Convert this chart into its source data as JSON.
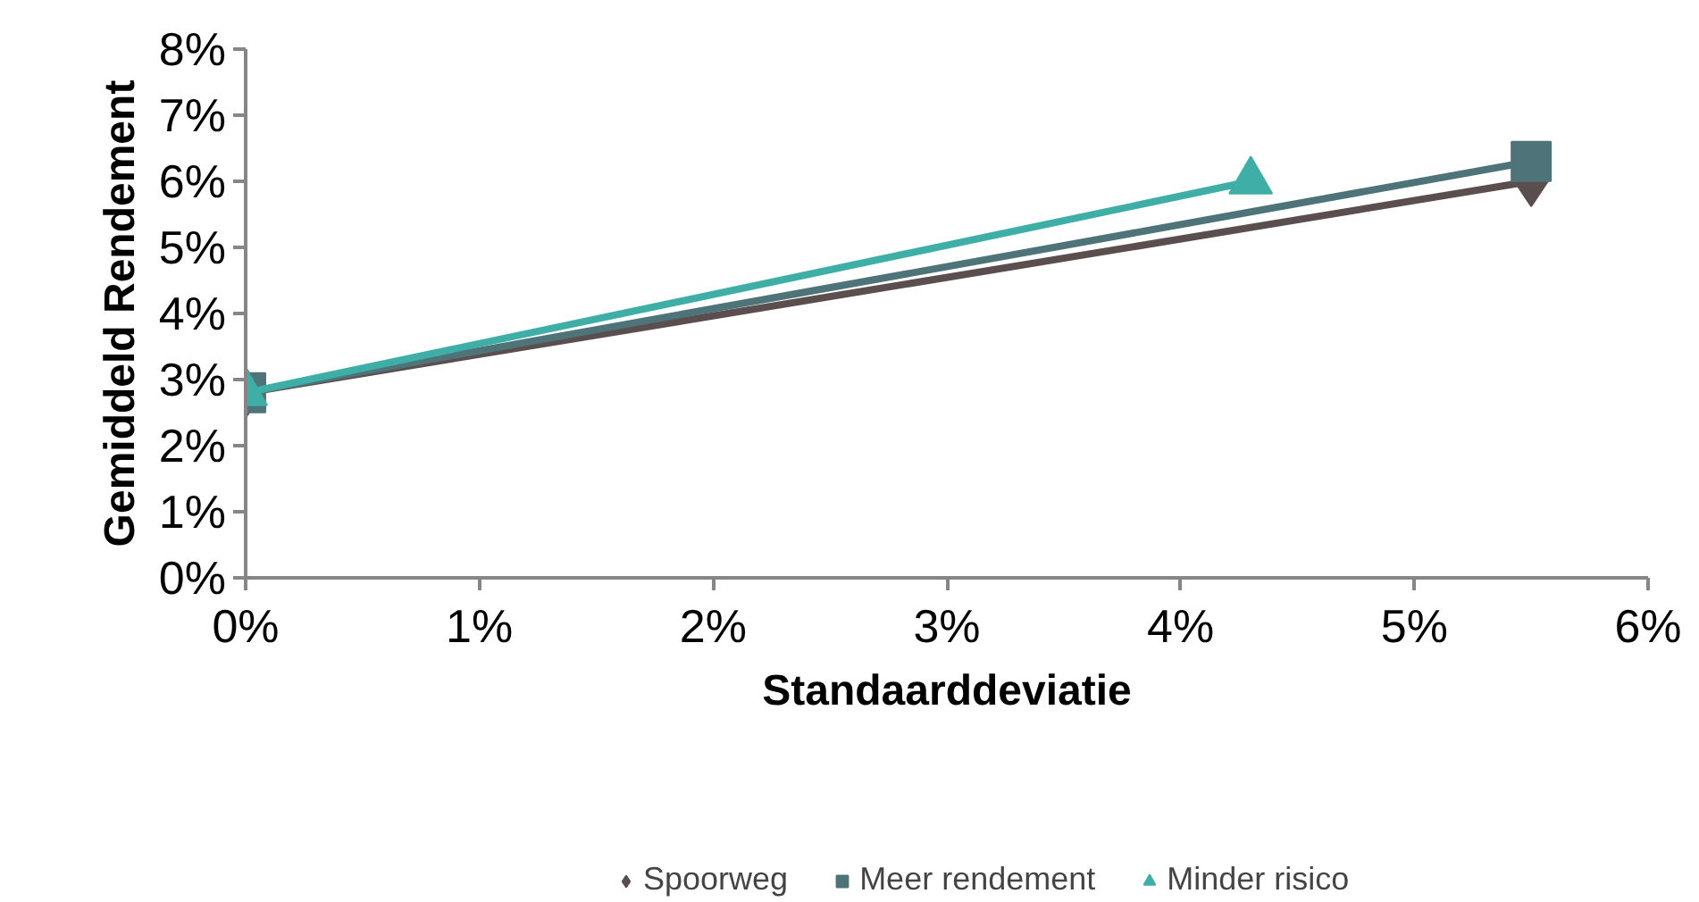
{
  "chart_data": {
    "type": "line",
    "xlabel": "Standaarddeviatie",
    "ylabel": "Gemiddeld Rendement",
    "series": [
      {
        "name": "Spoorweg",
        "color": "#5a4e4f",
        "marker": "diamond",
        "x": [
          0,
          5.5
        ],
        "values": [
          2.8,
          6.0
        ]
      },
      {
        "name": "Meer rendement",
        "color": "#4e7479",
        "marker": "square",
        "x": [
          0,
          5.5
        ],
        "values": [
          2.8,
          6.3
        ]
      },
      {
        "name": "Minder risico",
        "color": "#3faea6",
        "marker": "triangle",
        "x": [
          0,
          4.3
        ],
        "values": [
          2.8,
          6.0
        ]
      }
    ],
    "xlim": [
      0,
      6
    ],
    "ylim": [
      0,
      8
    ],
    "xticks": [
      {
        "value": 0,
        "label": "0%"
      },
      {
        "value": 1,
        "label": "1%"
      },
      {
        "value": 2,
        "label": "2%"
      },
      {
        "value": 3,
        "label": "3%"
      },
      {
        "value": 4,
        "label": "4%"
      },
      {
        "value": 5,
        "label": "5%"
      },
      {
        "value": 6,
        "label": "6%"
      }
    ],
    "yticks": [
      {
        "value": 0,
        "label": "0%"
      },
      {
        "value": 1,
        "label": "1%"
      },
      {
        "value": 2,
        "label": "2%"
      },
      {
        "value": 3,
        "label": "3%"
      },
      {
        "value": 4,
        "label": "4%"
      },
      {
        "value": 5,
        "label": "5%"
      },
      {
        "value": 6,
        "label": "6%"
      },
      {
        "value": 7,
        "label": "7%"
      },
      {
        "value": 8,
        "label": "8%"
      }
    ],
    "grid": false,
    "legend": "bottom",
    "line_style": "solid"
  }
}
